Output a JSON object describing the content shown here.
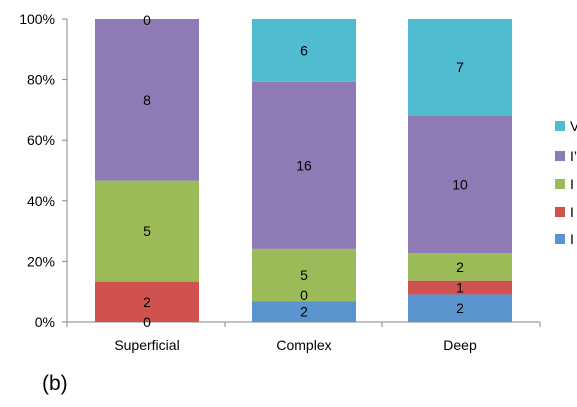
{
  "chart_data": {
    "type": "bar",
    "stacked": "percent",
    "categories": [
      "Superficial",
      "Complex",
      "Deep"
    ],
    "series": [
      {
        "name": "I",
        "color": "#5B95CF",
        "values": [
          0,
          2,
          2
        ]
      },
      {
        "name": "I",
        "color": "#D0524E",
        "values": [
          2,
          0,
          1
        ]
      },
      {
        "name": "I",
        "color": "#9BBB59",
        "values": [
          5,
          5,
          2
        ]
      },
      {
        "name": "I’",
        "color": "#8E7BB5",
        "values": [
          8,
          16,
          10
        ]
      },
      {
        "name": "V",
        "color": "#4FBCD0",
        "values": [
          0,
          6,
          7
        ]
      }
    ],
    "ylim": [
      0,
      100
    ],
    "yticks": [
      "0%",
      "20%",
      "40%",
      "60%",
      "80%",
      "100%"
    ],
    "grid": false,
    "legend_position": "right"
  },
  "caption": "(b)"
}
